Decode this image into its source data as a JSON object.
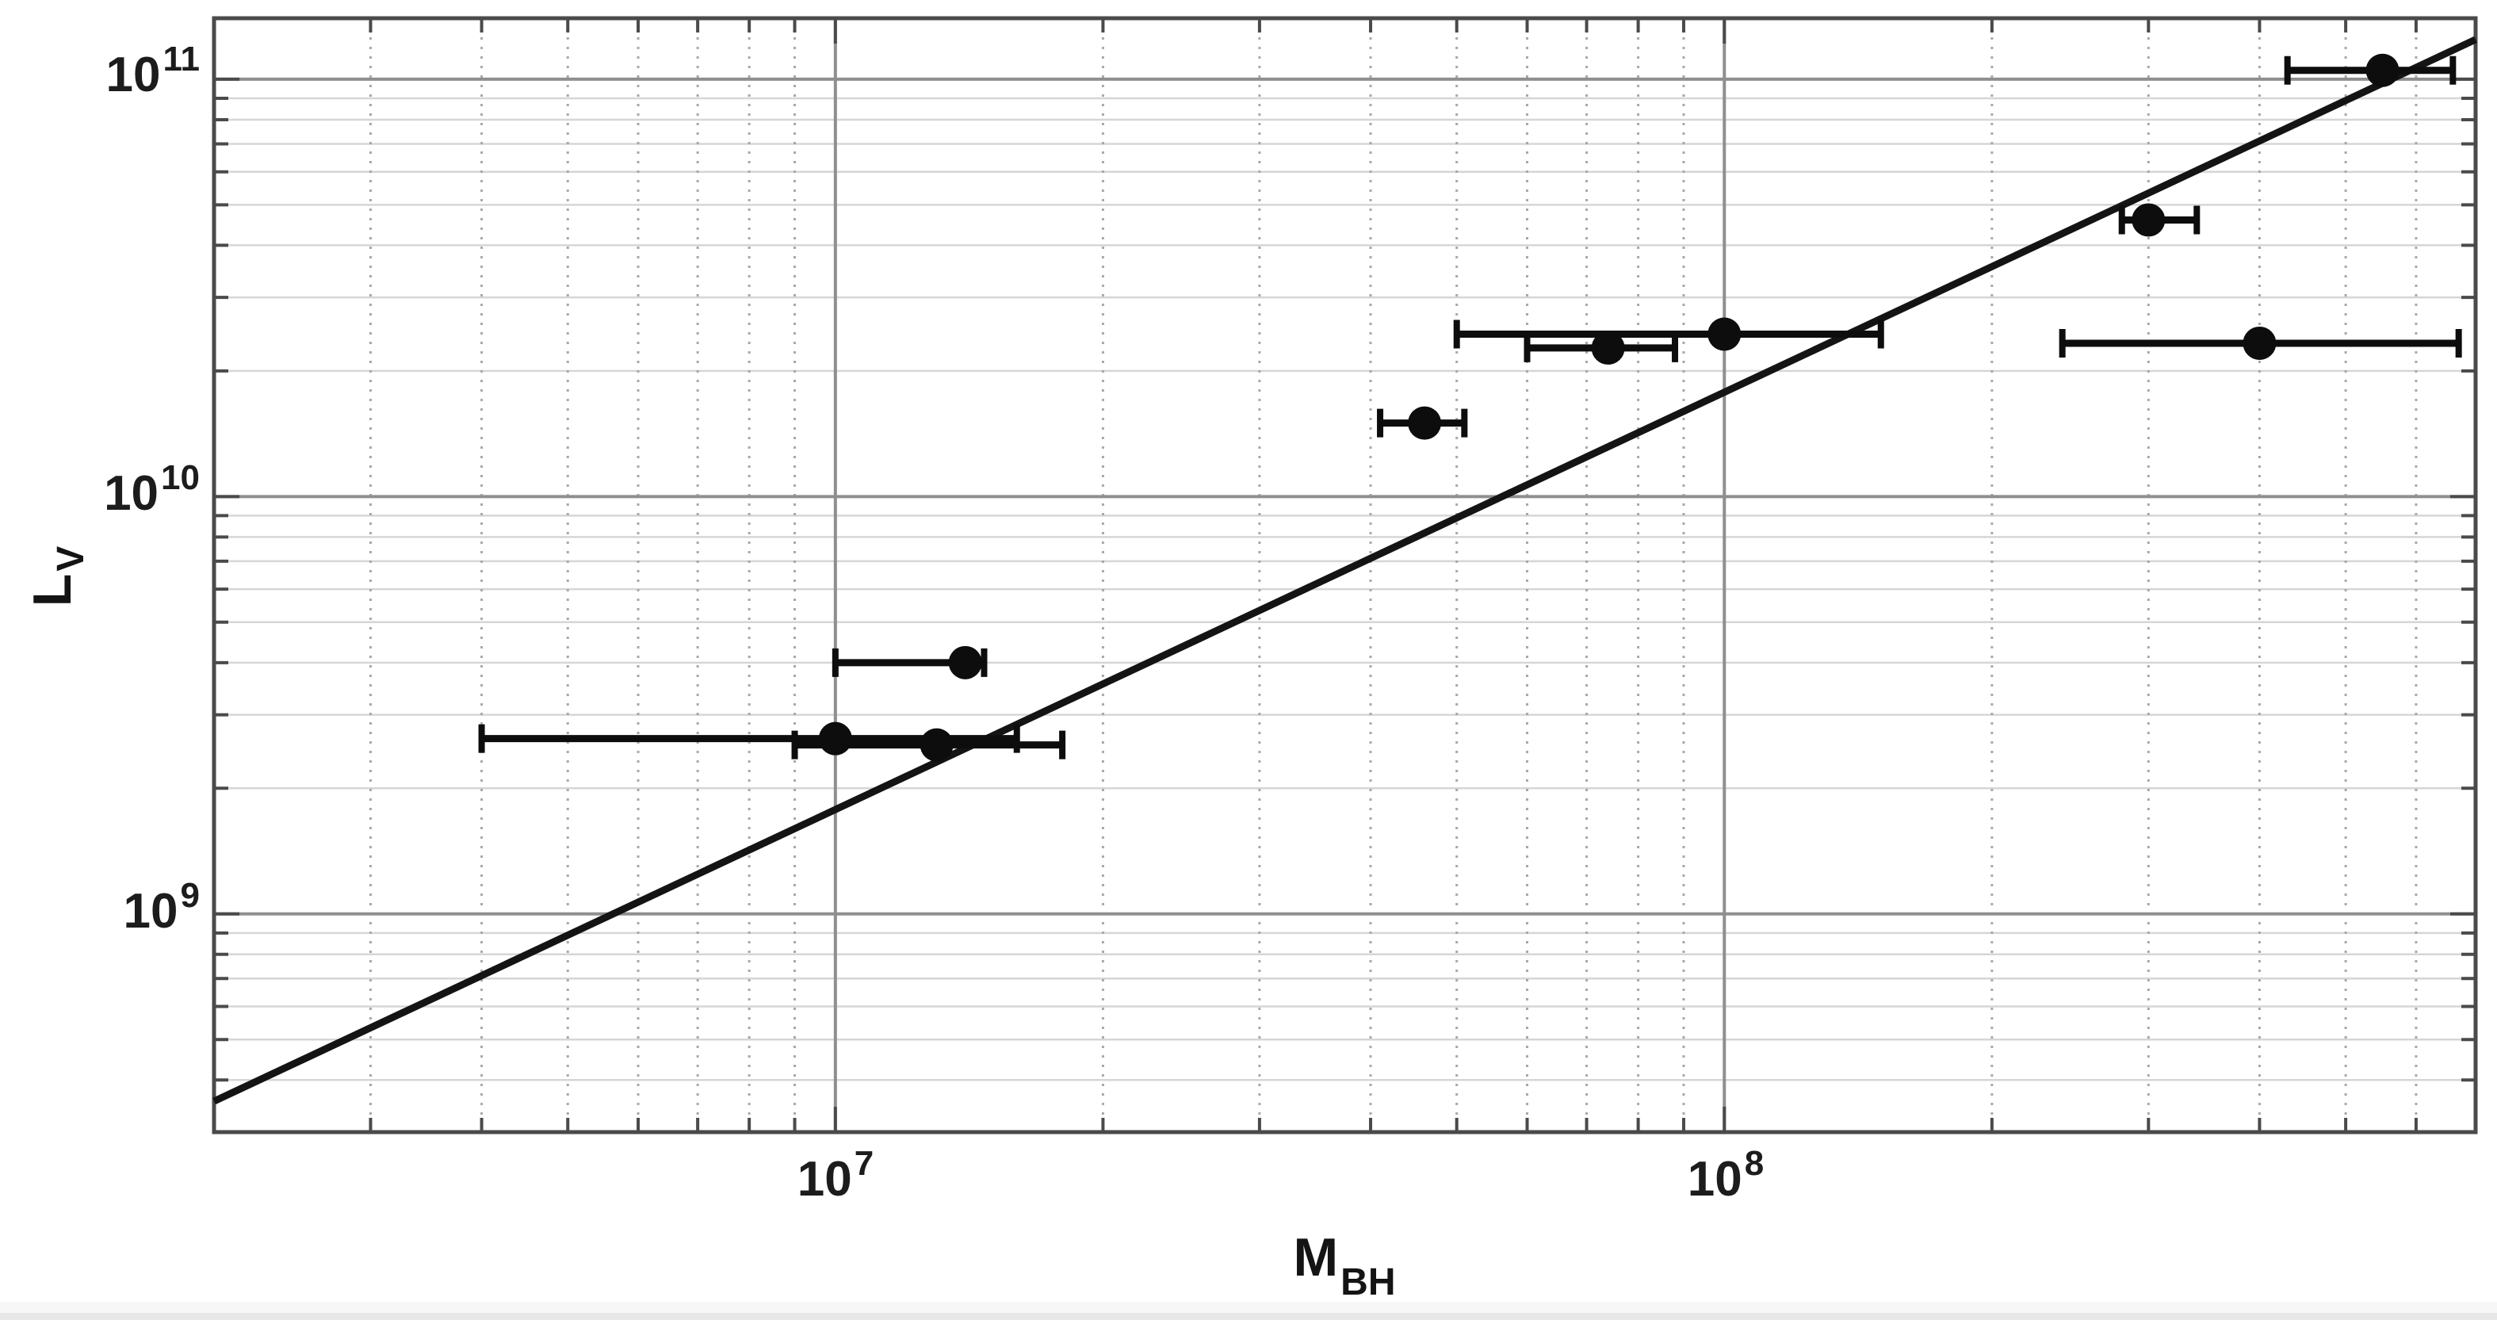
{
  "window": {
    "background": "#ffffff",
    "footer_strip_color": "#e7e7e7"
  },
  "chart_data": {
    "type": "scatter",
    "title": "",
    "xlabel": {
      "main": "M",
      "sub": "BH"
    },
    "ylabel": {
      "main": "L",
      "sub": "V"
    },
    "xscale": "log",
    "yscale": "log",
    "xlim": [
      2000000,
      700000000
    ],
    "ylim": [
      300000000,
      140000000000
    ],
    "x_ticks": [
      {
        "base": "10",
        "exp": "7",
        "value": 10000000
      },
      {
        "base": "10",
        "exp": "8",
        "value": 100000000
      }
    ],
    "y_ticks": [
      {
        "base": "10",
        "exp": "9",
        "value": 1000000000
      },
      {
        "base": "10",
        "exp": "10",
        "value": 10000000000
      },
      {
        "base": "10",
        "exp": "11",
        "value": 100000000000
      }
    ],
    "grid": {
      "major_on": true,
      "minor_on": true,
      "major_color": "#8f8f8f",
      "minor_horizontal_color": "#d6d6d6",
      "minor_vertical_color": "#a8a8a8",
      "border_color": "#4a4a4a"
    },
    "fit_line": {
      "description": "log10(L_V) = 1.00 * log10(M_BH) + 2.25",
      "log_slope": 1.0,
      "log_intercept": 2.25,
      "color": "#141414"
    },
    "points": [
      {
        "m_bh": 550000000,
        "l_v": 105000000000,
        "m_lo": 430000000,
        "m_hi": 660000000
      },
      {
        "m_bh": 300000000,
        "l_v": 46000000000,
        "m_lo": 280000000,
        "m_hi": 340000000
      },
      {
        "m_bh": 400000000,
        "l_v": 23300000000,
        "m_lo": 240000000,
        "m_hi": 670000000
      },
      {
        "m_bh": 100000000,
        "l_v": 24500000000,
        "m_lo": 50000000,
        "m_hi": 150000000
      },
      {
        "m_bh": 74000000,
        "l_v": 22700000000,
        "m_lo": 60000000,
        "m_hi": 88000000
      },
      {
        "m_bh": 46000000,
        "l_v": 15000000000,
        "m_lo": 41000000,
        "m_hi": 51000000
      },
      {
        "m_bh": 14000000,
        "l_v": 4000000000,
        "m_lo": 10000000,
        "m_hi": 14700000
      },
      {
        "m_bh": 10000000,
        "l_v": 2630000000,
        "m_lo": 4000000,
        "m_hi": 16000000
      },
      {
        "m_bh": 13000000,
        "l_v": 2540000000,
        "m_lo": 9000000,
        "m_hi": 18000000
      }
    ],
    "marker": {
      "color": "#0d0d0d",
      "radius": 21
    },
    "error_bar": {
      "color": "#0d0d0d",
      "thickness": 9,
      "cap_half_height": 18,
      "cap_thickness": 8
    },
    "legend": {
      "visible": false
    }
  }
}
